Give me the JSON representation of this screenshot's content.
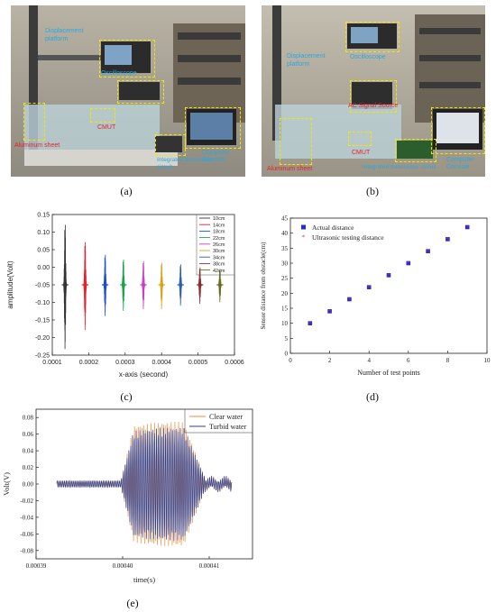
{
  "photo_a": {
    "label": "(a)",
    "annotations": [
      {
        "text": "Displacement platform",
        "color": "#2aa7e0"
      },
      {
        "text": "Oscilloscope",
        "color": "#2aa7e0"
      },
      {
        "text": "CMUT",
        "color": "#e8202a"
      },
      {
        "text": "Aluminum sheet",
        "color": "#e8202a"
      },
      {
        "text": "Integrated transceiver circuit",
        "color": "#2aa7e0"
      },
      {
        "text": "Computer Console",
        "color": "#2aa7e0"
      }
    ]
  },
  "photo_b": {
    "label": "(b)",
    "annotations": [
      {
        "text": "Displacement platform",
        "color": "#2aa7e0"
      },
      {
        "text": "Oscilloscope",
        "color": "#2aa7e0"
      },
      {
        "text": "AC Signal Source",
        "color": "#e8202a"
      },
      {
        "text": "CMUT",
        "color": "#e8202a"
      },
      {
        "text": "Integrated transceiver circuit",
        "color": "#2aa7e0"
      },
      {
        "text": "Computer Console",
        "color": "#2aa7e0"
      },
      {
        "text": "Aluminum sheet",
        "color": "#e8202a"
      }
    ]
  },
  "chart_data": [
    {
      "id": "c",
      "label": "(c)",
      "type": "line",
      "xlabel": "x-axis (second)",
      "ylabel": "amplitude(Volt)",
      "xlim": [
        0.0001,
        0.0006
      ],
      "ylim": [
        -0.25,
        0.15
      ],
      "xticks": [
        "0.0001",
        "0.0002",
        "0.0003",
        "0.0004",
        "0.0005",
        "0.0006"
      ],
      "yticks": [
        "0.15",
        "0.10",
        "0.05",
        "0.00",
        "-0.05",
        "-0.10",
        "-0.15",
        "-0.20",
        "-0.25"
      ],
      "legend_position": "top-right",
      "series": [
        {
          "name": "10cm",
          "color": "#333333",
          "center": 0.000135,
          "max": 0.14,
          "min": -0.235
        },
        {
          "name": "14cm",
          "color": "#e8202a",
          "center": 0.00019,
          "max": 0.085,
          "min": -0.18
        },
        {
          "name": "18cm",
          "color": "#1f4fd1",
          "center": 0.000245,
          "max": 0.045,
          "min": -0.14
        },
        {
          "name": "22cm",
          "color": "#1aa34a",
          "center": 0.000295,
          "max": 0.03,
          "min": -0.125
        },
        {
          "name": "26cm",
          "color": "#c93fc9",
          "center": 0.00035,
          "max": 0.025,
          "min": -0.12
        },
        {
          "name": "30cm",
          "color": "#d9a21b",
          "center": 0.0004,
          "max": 0.02,
          "min": -0.12
        },
        {
          "name": "34cm",
          "color": "#2a5fb5",
          "center": 0.000452,
          "max": 0.015,
          "min": -0.11
        },
        {
          "name": "38cm",
          "color": "#8a2c2c",
          "center": 0.000505,
          "max": 0.005,
          "min": -0.105
        },
        {
          "name": "42cm",
          "color": "#6a6a20",
          "center": 0.00056,
          "max": 0.0,
          "min": -0.1
        }
      ]
    },
    {
      "id": "d",
      "label": "(d)",
      "type": "scatter",
      "xlabel": "Number of test points",
      "ylabel": "Sensor distance from obstacle(cm)",
      "xlim": [
        0,
        10
      ],
      "ylim": [
        0,
        45
      ],
      "xticks": [
        "0",
        "2",
        "4",
        "6",
        "8",
        "10"
      ],
      "yticks": [
        "0",
        "5",
        "10",
        "15",
        "20",
        "25",
        "30",
        "35",
        "40",
        "45"
      ],
      "legend_position": "top-left",
      "x": [
        1,
        2,
        3,
        4,
        5,
        6,
        7,
        8,
        9
      ],
      "series": [
        {
          "name": "Actual distance",
          "color": "#1f2fd6",
          "marker": "square",
          "values": [
            10,
            14,
            18,
            22,
            26,
            30,
            34,
            38,
            42
          ]
        },
        {
          "name": "Ultrasonic testing distance",
          "color": "#e8202a",
          "marker": "star",
          "values": [
            10,
            14,
            18,
            22,
            26,
            30,
            34,
            38,
            42
          ]
        }
      ]
    },
    {
      "id": "e",
      "label": "(e)",
      "type": "line",
      "xlabel": "time(s)",
      "ylabel": "Volt(V)",
      "xlim": [
        0.00039,
        0.000415
      ],
      "ylim": [
        -0.09,
        0.09
      ],
      "xticks": [
        "0.00039",
        "0.00040",
        "0.00041"
      ],
      "yticks": [
        "0.08",
        "0.06",
        "0.04",
        "0.02",
        "0.00",
        "-0.02",
        "-0.04",
        "-0.06",
        "-0.08"
      ],
      "legend_position": "top-right",
      "series": [
        {
          "name": "Clear water",
          "color": "#f08a3a",
          "start": 0.0003924,
          "burst_start": 0.0003998,
          "burst_end": 0.0004095,
          "end": 0.0004126,
          "peak": 0.075
        },
        {
          "name": "Turbid water",
          "color": "#2d3f8f",
          "start": 0.0003924,
          "burst_start": 0.0003998,
          "burst_end": 0.0004095,
          "end": 0.0004126,
          "peak": 0.068
        }
      ]
    }
  ]
}
